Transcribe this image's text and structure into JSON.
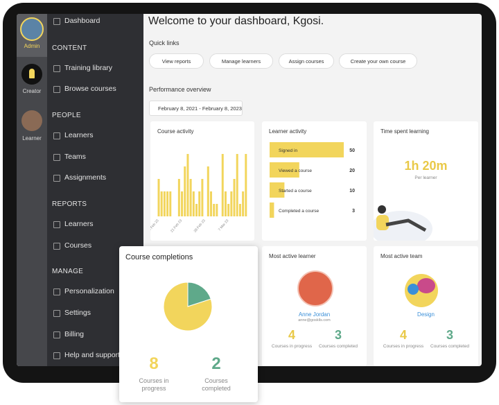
{
  "sidebar": {
    "roles": [
      "Admin",
      "Creator",
      "Learner"
    ],
    "dashboard": "Dashboard",
    "sections": [
      {
        "title": "CONTENT",
        "items": [
          "Training library",
          "Browse courses"
        ]
      },
      {
        "title": "PEOPLE",
        "items": [
          "Learners",
          "Teams",
          "Assignments"
        ]
      },
      {
        "title": "REPORTS",
        "items": [
          "Learners",
          "Courses"
        ]
      },
      {
        "title": "MANAGE",
        "items": [
          "Personalization",
          "Settings",
          "Billing",
          "Help and support"
        ]
      }
    ]
  },
  "header": {
    "title": "Welcome to your dashboard, Kgosi."
  },
  "quick_links": {
    "title": "Quick links",
    "links": [
      "View reports",
      "Manage learners",
      "Assign courses",
      "Create your own course"
    ]
  },
  "performance": {
    "title": "Performance overview",
    "date_range": "February 8, 2021 - February 8, 2023"
  },
  "course_activity": {
    "title": "Course activity",
    "x_labels": [
      "14 Feb 23",
      "21 Feb 23",
      "28 Feb 23",
      "7 Mar 23"
    ],
    "values": [
      3,
      2,
      2,
      2,
      2,
      0,
      0,
      3,
      2,
      4,
      5,
      3,
      2,
      1,
      2,
      3,
      0,
      4,
      2,
      1,
      1,
      0,
      5,
      2,
      1,
      2,
      3,
      5,
      1,
      2,
      5
    ],
    "color": "#f2d55c"
  },
  "learner_activity": {
    "title": "Learner activity",
    "categories": [
      "Signed in",
      "Viewed a course",
      "Started a course",
      "Completed a course"
    ],
    "values": [
      50,
      20,
      10,
      3
    ],
    "color": "#f2d55c"
  },
  "time_spent": {
    "title": "Time spent learning",
    "value": "1h 20m",
    "caption": "Per learner"
  },
  "most_active_learner": {
    "title": "Most active learner",
    "name": "Anne Jordan",
    "email": "anne@gosklls.com",
    "in_progress": {
      "value": 4,
      "label": "Courses in progress",
      "color": "#e9c948"
    },
    "completed": {
      "value": 3,
      "label": "Courses completed",
      "color": "#5fa98a"
    }
  },
  "most_active_team": {
    "title": "Most active team",
    "name": "Design",
    "in_progress": {
      "value": 4,
      "label": "Courses in progress",
      "color": "#e9c948"
    },
    "completed": {
      "value": 3,
      "label": "Courses completed",
      "color": "#5fa98a"
    }
  },
  "course_completions": {
    "title": "Course completions",
    "in_progress": {
      "value": 8,
      "label": "Courses in progress",
      "color": "#f2d55c"
    },
    "completed": {
      "value": 2,
      "label": "Courses completed",
      "color": "#5fa98a"
    }
  }
}
